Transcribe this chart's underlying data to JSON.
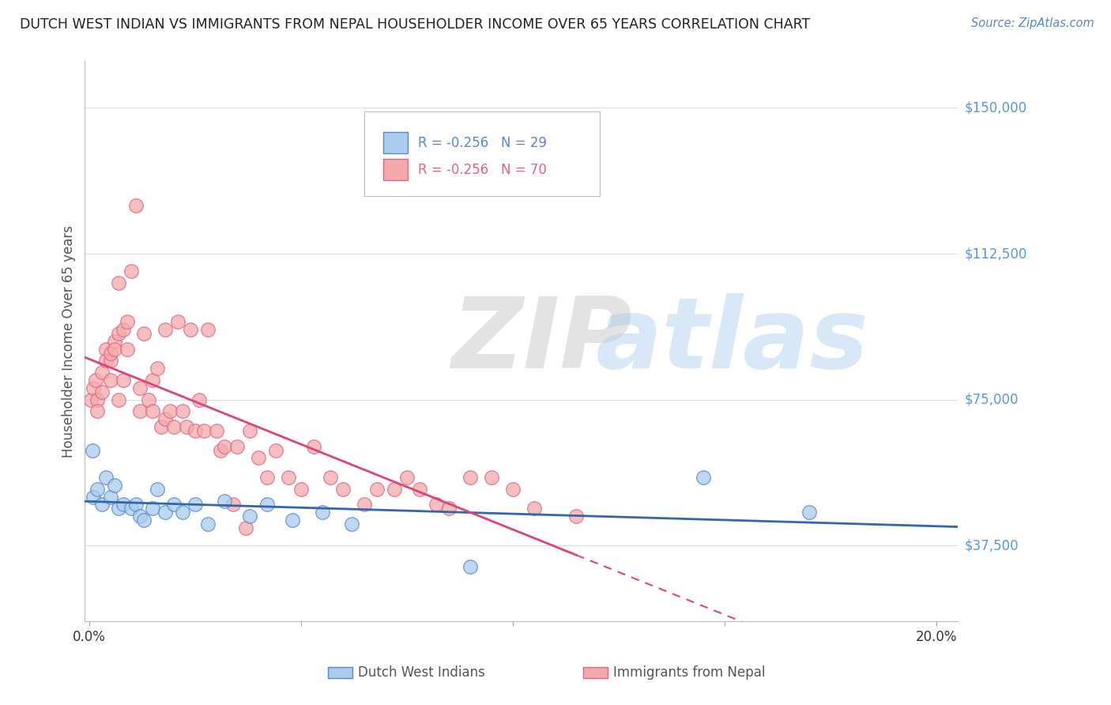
{
  "title": "DUTCH WEST INDIAN VS IMMIGRANTS FROM NEPAL HOUSEHOLDER INCOME OVER 65 YEARS CORRELATION CHART",
  "source": "Source: ZipAtlas.com",
  "ylabel": "Householder Income Over 65 years",
  "ytick_labels": [
    "$37,500",
    "$75,000",
    "$112,500",
    "$150,000"
  ],
  "ytick_values": [
    37500,
    75000,
    112500,
    150000
  ],
  "ylim": [
    18000,
    162000
  ],
  "xlim": [
    -0.001,
    0.205
  ],
  "legend_blue_r": "-0.256",
  "legend_blue_n": "29",
  "legend_pink_r": "-0.256",
  "legend_pink_n": "70",
  "legend_blue_label": "Dutch West Indians",
  "legend_pink_label": "Immigrants from Nepal",
  "watermark_zip": "ZIP",
  "watermark_atlas": "atlas",
  "title_color": "#222222",
  "source_color": "#5588cc",
  "axis_label_color": "#555555",
  "ytick_color": "#5599dd",
  "xtick_color": "#333333",
  "grid_color": "#dddddd",
  "blue_scatter_color": "#aaccee",
  "blue_edge_color": "#5588cc",
  "blue_line_color": "#3366aa",
  "pink_scatter_color": "#f4aaaa",
  "pink_edge_color": "#dd6688",
  "pink_line_color": "#dd4477",
  "blue_scatter_x": [
    0.0008,
    0.001,
    0.002,
    0.003,
    0.004,
    0.005,
    0.006,
    0.007,
    0.008,
    0.01,
    0.011,
    0.012,
    0.013,
    0.015,
    0.016,
    0.018,
    0.02,
    0.022,
    0.025,
    0.028,
    0.032,
    0.038,
    0.042,
    0.048,
    0.055,
    0.062,
    0.09,
    0.145,
    0.17
  ],
  "blue_scatter_y": [
    62000,
    50000,
    52000,
    48000,
    55000,
    50000,
    53000,
    47000,
    48000,
    47000,
    48000,
    45000,
    44000,
    47000,
    52000,
    46000,
    48000,
    46000,
    48000,
    43000,
    49000,
    45000,
    48000,
    44000,
    46000,
    43000,
    32000,
    55000,
    46000
  ],
  "pink_scatter_x": [
    0.0005,
    0.001,
    0.0015,
    0.002,
    0.002,
    0.003,
    0.003,
    0.004,
    0.004,
    0.005,
    0.005,
    0.005,
    0.006,
    0.006,
    0.007,
    0.007,
    0.007,
    0.008,
    0.008,
    0.009,
    0.009,
    0.01,
    0.011,
    0.012,
    0.012,
    0.013,
    0.014,
    0.015,
    0.015,
    0.016,
    0.017,
    0.018,
    0.018,
    0.019,
    0.02,
    0.021,
    0.022,
    0.023,
    0.024,
    0.025,
    0.026,
    0.027,
    0.028,
    0.03,
    0.031,
    0.032,
    0.034,
    0.035,
    0.037,
    0.038,
    0.04,
    0.042,
    0.044,
    0.047,
    0.05,
    0.053,
    0.057,
    0.06,
    0.065,
    0.068,
    0.072,
    0.075,
    0.078,
    0.082,
    0.085,
    0.09,
    0.095,
    0.1,
    0.105,
    0.115
  ],
  "pink_scatter_y": [
    75000,
    78000,
    80000,
    75000,
    72000,
    82000,
    77000,
    88000,
    85000,
    80000,
    85000,
    87000,
    90000,
    88000,
    92000,
    75000,
    105000,
    93000,
    80000,
    88000,
    95000,
    108000,
    125000,
    78000,
    72000,
    92000,
    75000,
    80000,
    72000,
    83000,
    68000,
    70000,
    93000,
    72000,
    68000,
    95000,
    72000,
    68000,
    93000,
    67000,
    75000,
    67000,
    93000,
    67000,
    62000,
    63000,
    48000,
    63000,
    42000,
    67000,
    60000,
    55000,
    62000,
    55000,
    52000,
    63000,
    55000,
    52000,
    48000,
    52000,
    52000,
    55000,
    52000,
    48000,
    47000,
    55000,
    55000,
    52000,
    47000,
    45000
  ]
}
